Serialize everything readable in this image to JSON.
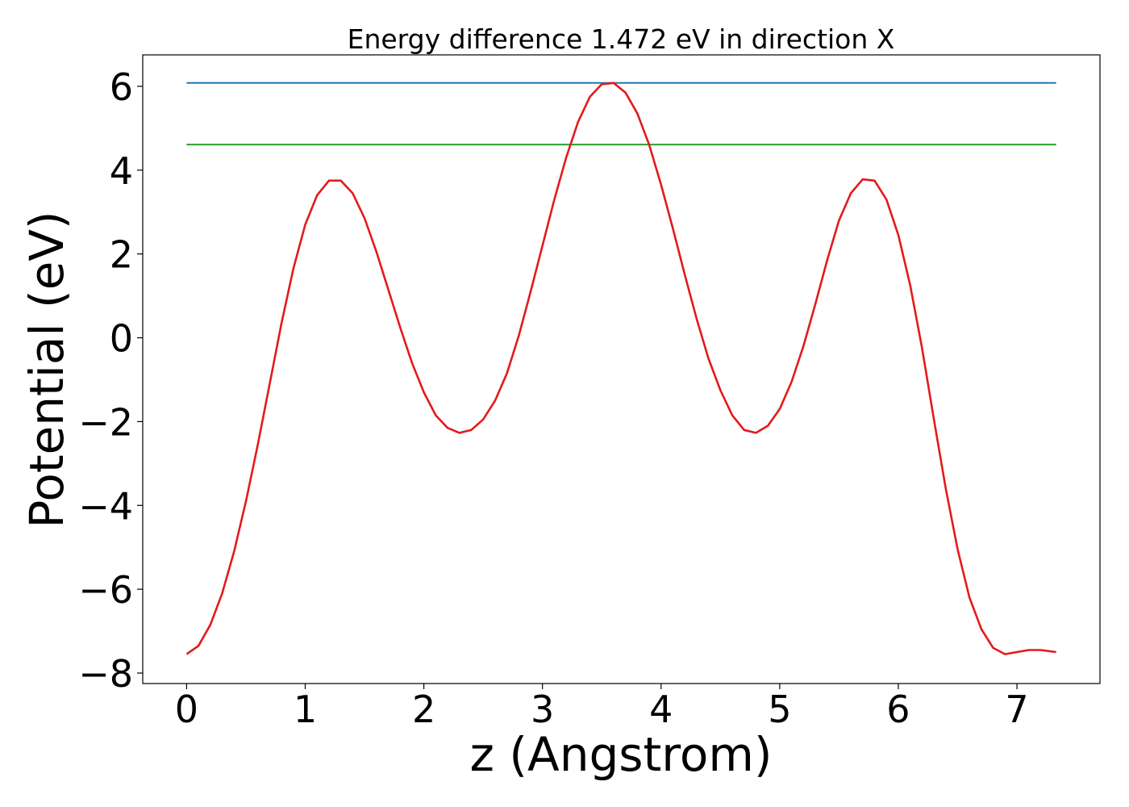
{
  "chart_data": {
    "type": "line",
    "title": "Energy difference 1.472 eV in direction X",
    "xlabel": "z (Angstrom)",
    "ylabel": "Potential (eV)",
    "xlim": [
      -0.37,
      7.7
    ],
    "ylim": [
      -8.25,
      6.75
    ],
    "x_ticks": [
      0,
      1,
      2,
      3,
      4,
      5,
      6,
      7
    ],
    "x_tick_labels": [
      "0",
      "1",
      "2",
      "3",
      "4",
      "5",
      "6",
      "7"
    ],
    "y_ticks": [
      -8,
      -6,
      -4,
      -2,
      0,
      2,
      4,
      6
    ],
    "y_tick_labels": [
      "−8",
      "−6",
      "−4",
      "−2",
      "0",
      "2",
      "4",
      "6"
    ],
    "grid": false,
    "series": [
      {
        "color": "#1f77b4",
        "x": [
          0,
          7.33
        ],
        "y": [
          6.08,
          6.08
        ]
      },
      {
        "color": "#2ca02c",
        "x": [
          0,
          7.33
        ],
        "y": [
          4.61,
          4.61
        ]
      },
      {
        "color": "#e31a1c",
        "x": [
          0,
          0.1,
          0.2,
          0.3,
          0.4,
          0.5,
          0.6,
          0.7,
          0.8,
          0.9,
          1.0,
          1.1,
          1.2,
          1.3,
          1.4,
          1.5,
          1.6,
          1.7,
          1.8,
          1.9,
          2.0,
          2.1,
          2.2,
          2.3,
          2.4,
          2.5,
          2.6,
          2.7,
          2.8,
          2.9,
          3.0,
          3.1,
          3.2,
          3.3,
          3.4,
          3.5,
          3.6,
          3.7,
          3.8,
          3.9,
          4.0,
          4.1,
          4.2,
          4.3,
          4.4,
          4.5,
          4.6,
          4.7,
          4.8,
          4.9,
          5.0,
          5.1,
          5.2,
          5.3,
          5.4,
          5.5,
          5.6,
          5.7,
          5.8,
          5.9,
          6.0,
          6.1,
          6.2,
          6.3,
          6.4,
          6.5,
          6.6,
          6.7,
          6.8,
          6.9,
          7.0,
          7.1,
          7.2,
          7.33
        ],
        "y": [
          -7.55,
          -7.35,
          -6.85,
          -6.1,
          -5.1,
          -3.9,
          -2.55,
          -1.1,
          0.35,
          1.65,
          2.7,
          3.4,
          3.75,
          3.75,
          3.45,
          2.85,
          2.05,
          1.15,
          0.25,
          -0.6,
          -1.3,
          -1.85,
          -2.15,
          -2.27,
          -2.2,
          -1.95,
          -1.5,
          -0.85,
          0.05,
          1.1,
          2.2,
          3.3,
          4.3,
          5.15,
          5.75,
          6.05,
          6.08,
          5.85,
          5.35,
          4.6,
          3.65,
          2.6,
          1.5,
          0.45,
          -0.5,
          -1.25,
          -1.85,
          -2.2,
          -2.27,
          -2.1,
          -1.7,
          -1.05,
          -0.2,
          0.8,
          1.85,
          2.8,
          3.45,
          3.78,
          3.75,
          3.3,
          2.45,
          1.25,
          -0.25,
          -1.95,
          -3.6,
          -5.05,
          -6.2,
          -6.95,
          -7.4,
          -7.55,
          -7.5,
          -7.45,
          -7.45,
          -7.5
        ]
      }
    ]
  }
}
